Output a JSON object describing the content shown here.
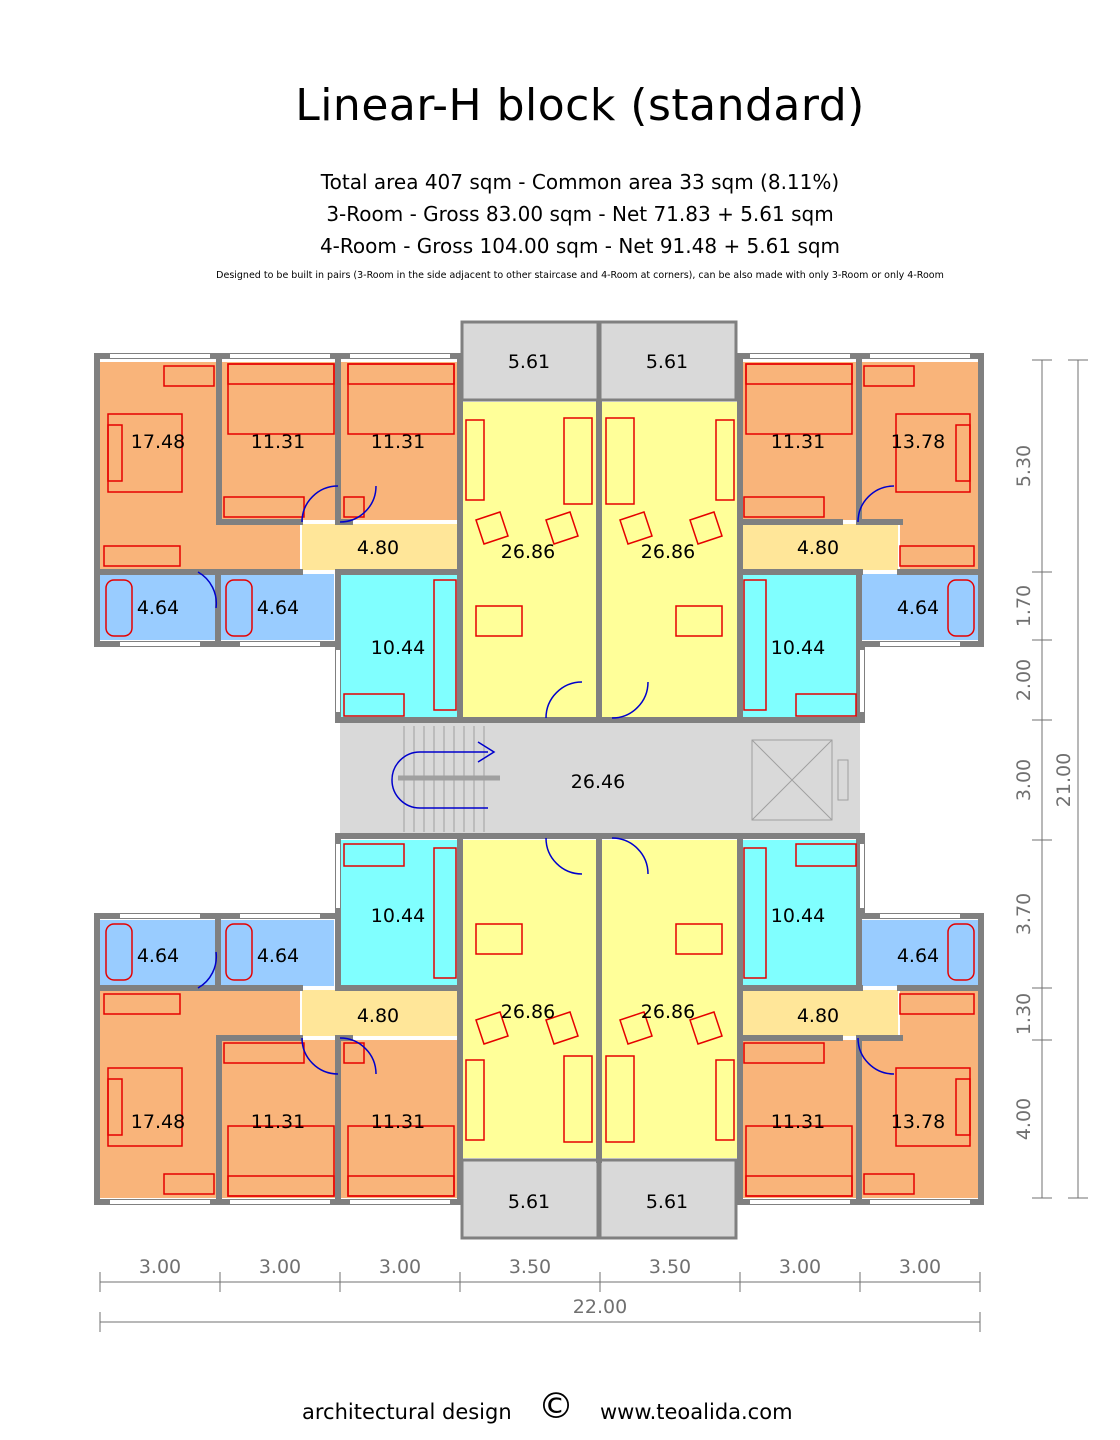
{
  "header": {
    "title": "Linear-H block (standard)",
    "line1": "Total area 407 sqm - Common area 33 sqm (8.11%)",
    "line2": "3-Room - Gross 83.00 sqm - Net 71.83 + 5.61 sqm",
    "line3": "4-Room - Gross 104.00 sqm - Net 91.48 + 5.61 sqm",
    "note": "Designed to be built in pairs (3-Room in the side adjacent to other staircase and 4-Room at corners), can be also made with only 3-Room or only 4-Room"
  },
  "colors": {
    "bedroom": "#f9b47a",
    "bath": "#99ccff",
    "kitchen": "#80ffff",
    "living": "#ffff99",
    "hall": "#ffe699",
    "common": "#d9d9d9",
    "wall": "#808080",
    "furniture": "#e60000",
    "door": "#0000cc",
    "dimension": "#707070"
  },
  "rooms": {
    "tl_bed_a": "17.48",
    "tl_bed_b": "11.31",
    "tl_bed_c": "11.31",
    "tl_hall": "4.80",
    "tl_bath_a": "4.64",
    "tl_bath_b": "4.64",
    "tl_kitchen": "10.44",
    "tl_living": "26.86",
    "tl_balcony": "5.61",
    "tr_balcony": "5.61",
    "tr_living": "26.86",
    "tr_bed_a": "11.31",
    "tr_bed_b": "13.78",
    "tr_hall": "4.80",
    "tr_kitchen": "10.44",
    "tr_bath": "4.64",
    "stair": "26.46",
    "bl_bath_a": "4.64",
    "bl_bath_b": "4.64",
    "bl_kitchen": "10.44",
    "bl_hall": "4.80",
    "bl_living": "26.86",
    "bl_bed_a": "17.48",
    "bl_bed_b": "11.31",
    "bl_bed_c": "11.31",
    "bl_balcony": "5.61",
    "br_living": "26.86",
    "br_kitchen": "10.44",
    "br_bath": "4.64",
    "br_hall": "4.80",
    "br_bed_a": "11.31",
    "br_bed_b": "13.78",
    "br_balcony": "5.61"
  },
  "dimensions": {
    "bottom": [
      "3.00",
      "3.00",
      "3.00",
      "3.50",
      "3.50",
      "3.00",
      "3.00"
    ],
    "total_width": "22.00",
    "right": [
      "5.30",
      "1.70",
      "2.00",
      "3.00",
      "3.70",
      "1.30",
      "4.00"
    ],
    "total_height": "21.00"
  },
  "footer": {
    "left": "architectural design",
    "copyright": "©",
    "right": "www.teoalida.com"
  }
}
